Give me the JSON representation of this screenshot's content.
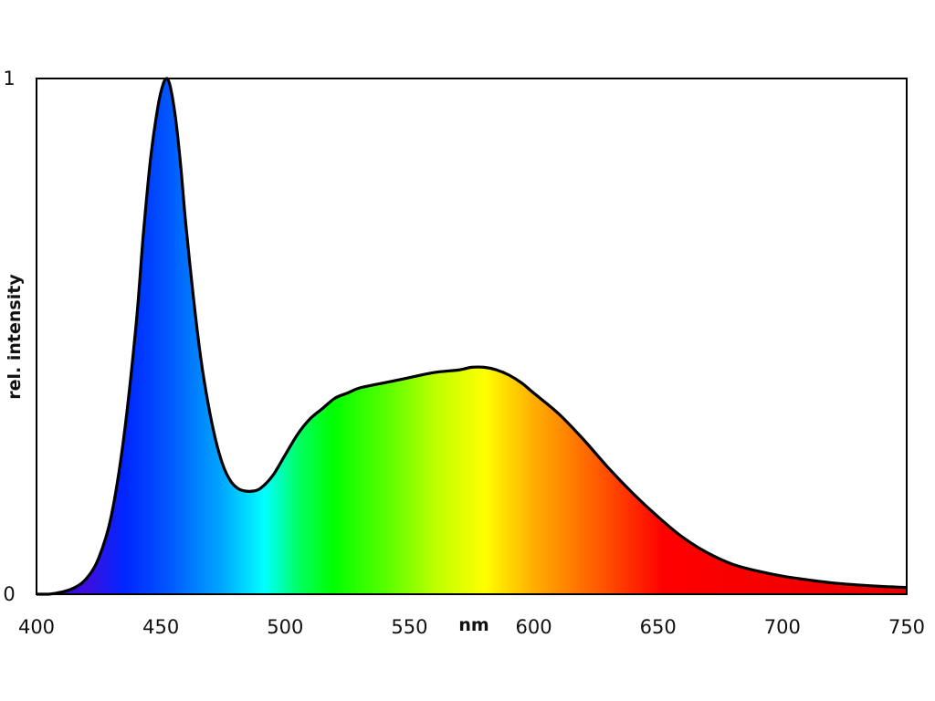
{
  "chart_data": {
    "type": "area",
    "xlabel": "nm",
    "ylabel": "rel. intensity",
    "xlim": [
      400,
      750
    ],
    "ylim": [
      0,
      1
    ],
    "x_ticks": [
      "400",
      "450",
      "500",
      "550",
      "600",
      "650",
      "700",
      "750"
    ],
    "y_ticks": [
      "0",
      "1"
    ],
    "grid": false,
    "fill": "visible-spectrum gradient under the curve",
    "series": [
      {
        "x": [
          400,
          405,
          410,
          415,
          420,
          425,
          430,
          435,
          440,
          443,
          446,
          449,
          451,
          452.5,
          454,
          456,
          458,
          460,
          463,
          466,
          469,
          472,
          475,
          478,
          481,
          484,
          487,
          490,
          495,
          500,
          505,
          510,
          515,
          520,
          525,
          530,
          540,
          550,
          560,
          570,
          575,
          580,
          585,
          590,
          595,
          600,
          610,
          620,
          630,
          640,
          650,
          660,
          670,
          680,
          690,
          700,
          710,
          720,
          730,
          740,
          750
        ],
        "y": [
          0.0,
          0.0,
          0.004,
          0.012,
          0.03,
          0.07,
          0.15,
          0.3,
          0.52,
          0.7,
          0.85,
          0.95,
          0.99,
          1.0,
          0.98,
          0.92,
          0.83,
          0.72,
          0.58,
          0.46,
          0.37,
          0.3,
          0.25,
          0.22,
          0.205,
          0.2,
          0.2,
          0.205,
          0.23,
          0.27,
          0.31,
          0.34,
          0.36,
          0.38,
          0.39,
          0.4,
          0.41,
          0.42,
          0.43,
          0.435,
          0.44,
          0.44,
          0.435,
          0.425,
          0.41,
          0.39,
          0.35,
          0.3,
          0.245,
          0.195,
          0.15,
          0.11,
          0.08,
          0.058,
          0.045,
          0.035,
          0.028,
          0.022,
          0.018,
          0.015,
          0.013
        ]
      }
    ]
  }
}
